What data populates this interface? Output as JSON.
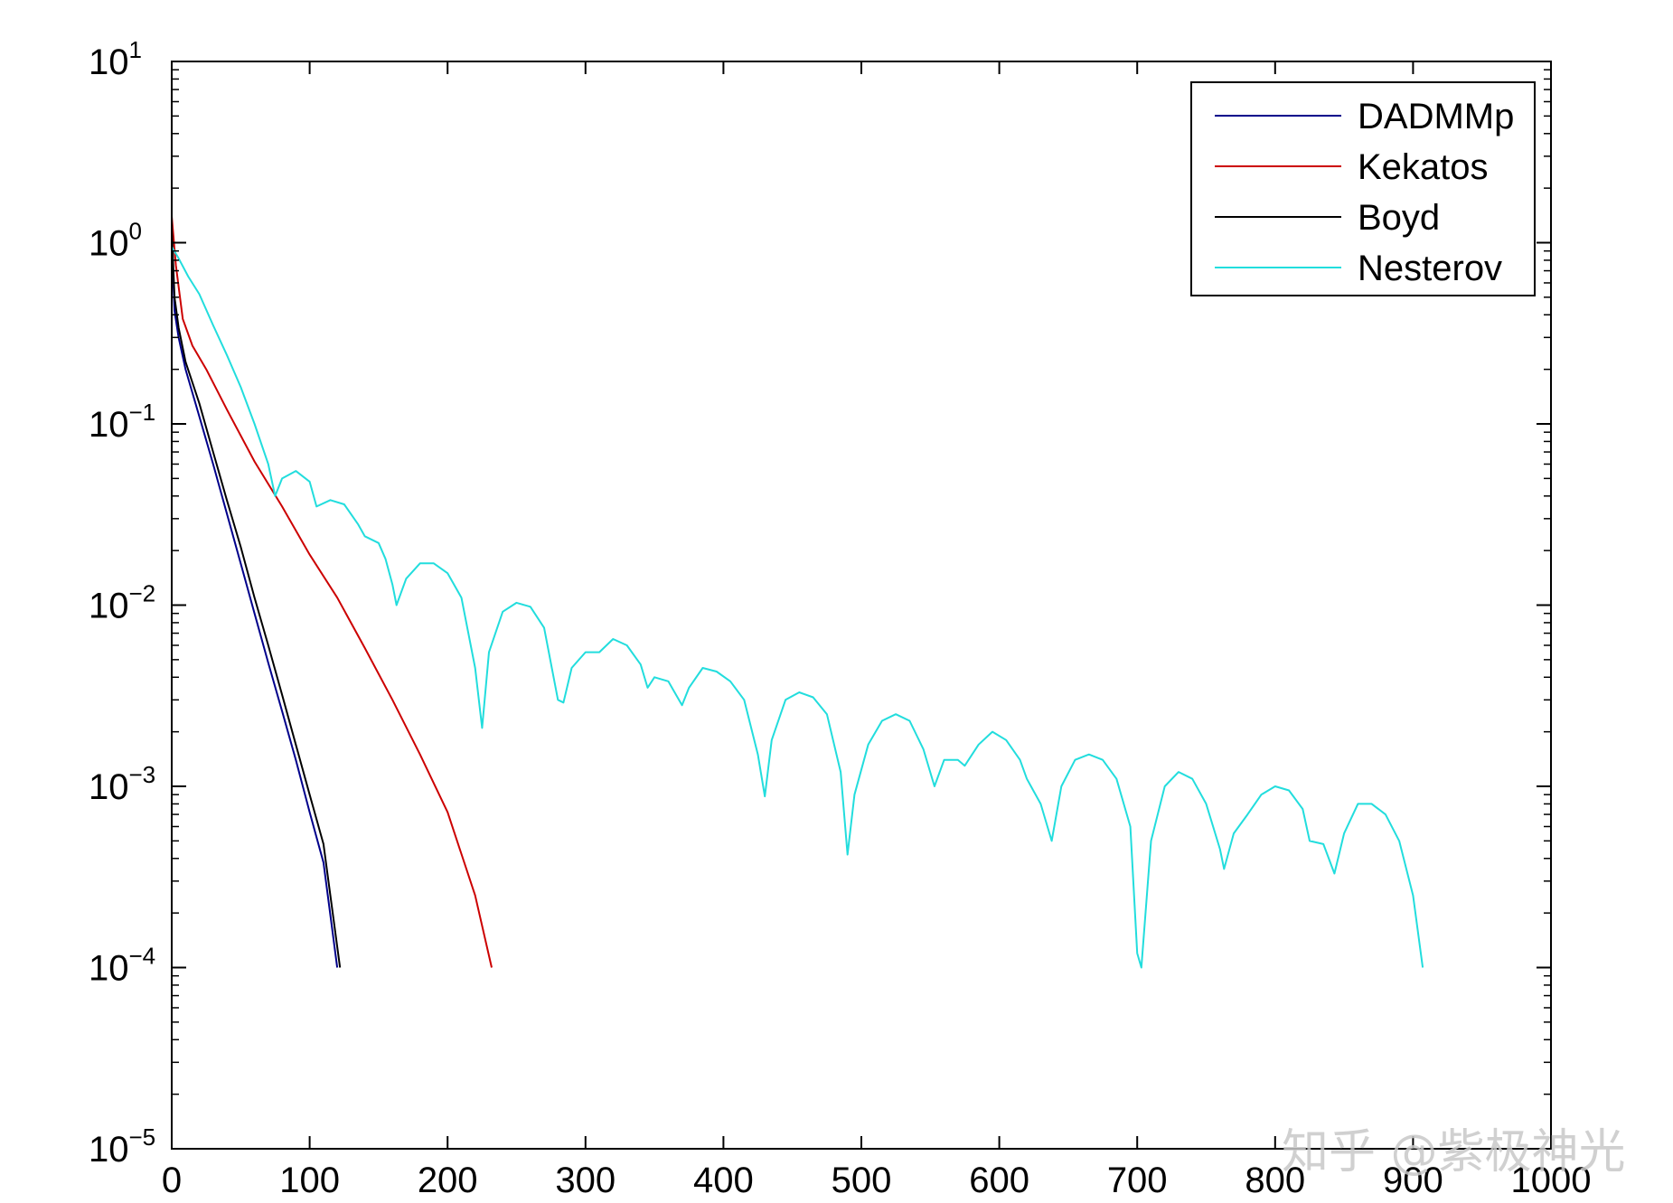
{
  "chart_data": {
    "type": "line",
    "title": "",
    "xlabel": "",
    "ylabel": "",
    "xlim": [
      0,
      1000
    ],
    "ylim": [
      1e-05,
      10
    ],
    "yscale": "log",
    "grid": false,
    "legend_position": "top-right",
    "x_ticks": [
      {
        "value": 0,
        "label": "0"
      },
      {
        "value": 100,
        "label": "100"
      },
      {
        "value": 200,
        "label": "200"
      },
      {
        "value": 300,
        "label": "300"
      },
      {
        "value": 400,
        "label": "400"
      },
      {
        "value": 500,
        "label": "500"
      },
      {
        "value": 600,
        "label": "600"
      },
      {
        "value": 700,
        "label": "700"
      },
      {
        "value": 800,
        "label": "800"
      },
      {
        "value": 900,
        "label": "900"
      },
      {
        "value": 1000,
        "label": "1000"
      }
    ],
    "y_ticks": [
      {
        "value": 10,
        "base": "10",
        "exp": "1"
      },
      {
        "value": 1,
        "base": "10",
        "exp": "0"
      },
      {
        "value": 0.1,
        "base": "10",
        "exp": "−1"
      },
      {
        "value": 0.01,
        "base": "10",
        "exp": "−2"
      },
      {
        "value": 0.001,
        "base": "10",
        "exp": "−3"
      },
      {
        "value": 0.0001,
        "base": "10",
        "exp": "−4"
      },
      {
        "value": 1e-05,
        "base": "10",
        "exp": "−5"
      }
    ],
    "series": [
      {
        "name": "DADMMp",
        "color": "#00008b",
        "points": [
          [
            0,
            1.0
          ],
          [
            2,
            0.42
          ],
          [
            5,
            0.3
          ],
          [
            10,
            0.2
          ],
          [
            20,
            0.11
          ],
          [
            30,
            0.06
          ],
          [
            40,
            0.032
          ],
          [
            50,
            0.017
          ],
          [
            60,
            0.009
          ],
          [
            70,
            0.0048
          ],
          [
            80,
            0.0026
          ],
          [
            90,
            0.0014
          ],
          [
            100,
            0.00072
          ],
          [
            110,
            0.00038
          ],
          [
            120,
            0.0001
          ]
        ]
      },
      {
        "name": "Kekatos",
        "color": "#cc0000",
        "points": [
          [
            0,
            1.4
          ],
          [
            3,
            0.75
          ],
          [
            8,
            0.38
          ],
          [
            15,
            0.27
          ],
          [
            25,
            0.2
          ],
          [
            40,
            0.12
          ],
          [
            60,
            0.062
          ],
          [
            80,
            0.035
          ],
          [
            100,
            0.019
          ],
          [
            120,
            0.011
          ],
          [
            140,
            0.0058
          ],
          [
            160,
            0.003
          ],
          [
            180,
            0.0015
          ],
          [
            200,
            0.00072
          ],
          [
            220,
            0.00025
          ],
          [
            232,
            0.0001
          ]
        ]
      },
      {
        "name": "Boyd",
        "color": "#000000",
        "points": [
          [
            0,
            1.2
          ],
          [
            2,
            0.5
          ],
          [
            5,
            0.34
          ],
          [
            10,
            0.22
          ],
          [
            20,
            0.13
          ],
          [
            30,
            0.07
          ],
          [
            40,
            0.038
          ],
          [
            50,
            0.021
          ],
          [
            60,
            0.011
          ],
          [
            70,
            0.006
          ],
          [
            80,
            0.0032
          ],
          [
            90,
            0.0017
          ],
          [
            100,
            0.0009
          ],
          [
            110,
            0.00048
          ],
          [
            122,
            0.0001
          ]
        ]
      },
      {
        "name": "Nesterov",
        "color": "#22dddd",
        "points": [
          [
            0,
            0.95
          ],
          [
            5,
            0.82
          ],
          [
            12,
            0.65
          ],
          [
            20,
            0.52
          ],
          [
            30,
            0.35
          ],
          [
            40,
            0.24
          ],
          [
            50,
            0.16
          ],
          [
            60,
            0.1
          ],
          [
            70,
            0.06
          ],
          [
            75,
            0.04
          ],
          [
            80,
            0.05
          ],
          [
            90,
            0.055
          ],
          [
            100,
            0.048
          ],
          [
            105,
            0.035
          ],
          [
            115,
            0.038
          ],
          [
            125,
            0.036
          ],
          [
            135,
            0.028
          ],
          [
            140,
            0.024
          ],
          [
            150,
            0.022
          ],
          [
            155,
            0.018
          ],
          [
            160,
            0.013
          ],
          [
            163,
            0.01
          ],
          [
            170,
            0.014
          ],
          [
            180,
            0.017
          ],
          [
            190,
            0.017
          ],
          [
            200,
            0.015
          ],
          [
            210,
            0.011
          ],
          [
            220,
            0.0045
          ],
          [
            225,
            0.0021
          ],
          [
            230,
            0.0055
          ],
          [
            240,
            0.0092
          ],
          [
            250,
            0.0103
          ],
          [
            260,
            0.0098
          ],
          [
            270,
            0.0075
          ],
          [
            280,
            0.003
          ],
          [
            284,
            0.0029
          ],
          [
            290,
            0.0045
          ],
          [
            300,
            0.0055
          ],
          [
            310,
            0.0055
          ],
          [
            320,
            0.0065
          ],
          [
            330,
            0.006
          ],
          [
            340,
            0.0047
          ],
          [
            345,
            0.0035
          ],
          [
            350,
            0.004
          ],
          [
            360,
            0.0038
          ],
          [
            370,
            0.0028
          ],
          [
            375,
            0.0035
          ],
          [
            385,
            0.0045
          ],
          [
            395,
            0.0043
          ],
          [
            405,
            0.0038
          ],
          [
            415,
            0.003
          ],
          [
            425,
            0.0015
          ],
          [
            430,
            0.00088
          ],
          [
            435,
            0.0018
          ],
          [
            445,
            0.003
          ],
          [
            455,
            0.0033
          ],
          [
            465,
            0.0031
          ],
          [
            475,
            0.0025
          ],
          [
            485,
            0.0012
          ],
          [
            490,
            0.00042
          ],
          [
            495,
            0.0009
          ],
          [
            505,
            0.0017
          ],
          [
            515,
            0.0023
          ],
          [
            525,
            0.0025
          ],
          [
            535,
            0.0023
          ],
          [
            545,
            0.0016
          ],
          [
            553,
            0.001
          ],
          [
            560,
            0.0014
          ],
          [
            570,
            0.0014
          ],
          [
            575,
            0.0013
          ],
          [
            585,
            0.0017
          ],
          [
            595,
            0.002
          ],
          [
            605,
            0.0018
          ],
          [
            615,
            0.0014
          ],
          [
            620,
            0.0011
          ],
          [
            630,
            0.0008
          ],
          [
            638,
            0.0005
          ],
          [
            645,
            0.001
          ],
          [
            655,
            0.0014
          ],
          [
            665,
            0.0015
          ],
          [
            675,
            0.0014
          ],
          [
            685,
            0.0011
          ],
          [
            695,
            0.0006
          ],
          [
            700,
            0.00012
          ],
          [
            703,
            0.0001
          ],
          [
            710,
            0.0005
          ],
          [
            720,
            0.001
          ],
          [
            730,
            0.0012
          ],
          [
            740,
            0.0011
          ],
          [
            750,
            0.0008
          ],
          [
            760,
            0.00045
          ],
          [
            763,
            0.00035
          ],
          [
            770,
            0.00055
          ],
          [
            780,
            0.0007
          ],
          [
            790,
            0.0009
          ],
          [
            800,
            0.001
          ],
          [
            810,
            0.00095
          ],
          [
            820,
            0.00075
          ],
          [
            825,
            0.0005
          ],
          [
            835,
            0.00048
          ],
          [
            843,
            0.00033
          ],
          [
            850,
            0.00055
          ],
          [
            860,
            0.0008
          ],
          [
            870,
            0.0008
          ],
          [
            880,
            0.0007
          ],
          [
            890,
            0.0005
          ],
          [
            900,
            0.00025
          ],
          [
            907,
            0.0001
          ]
        ]
      }
    ]
  },
  "watermark": {
    "text": "知乎 @紫极神光"
  }
}
